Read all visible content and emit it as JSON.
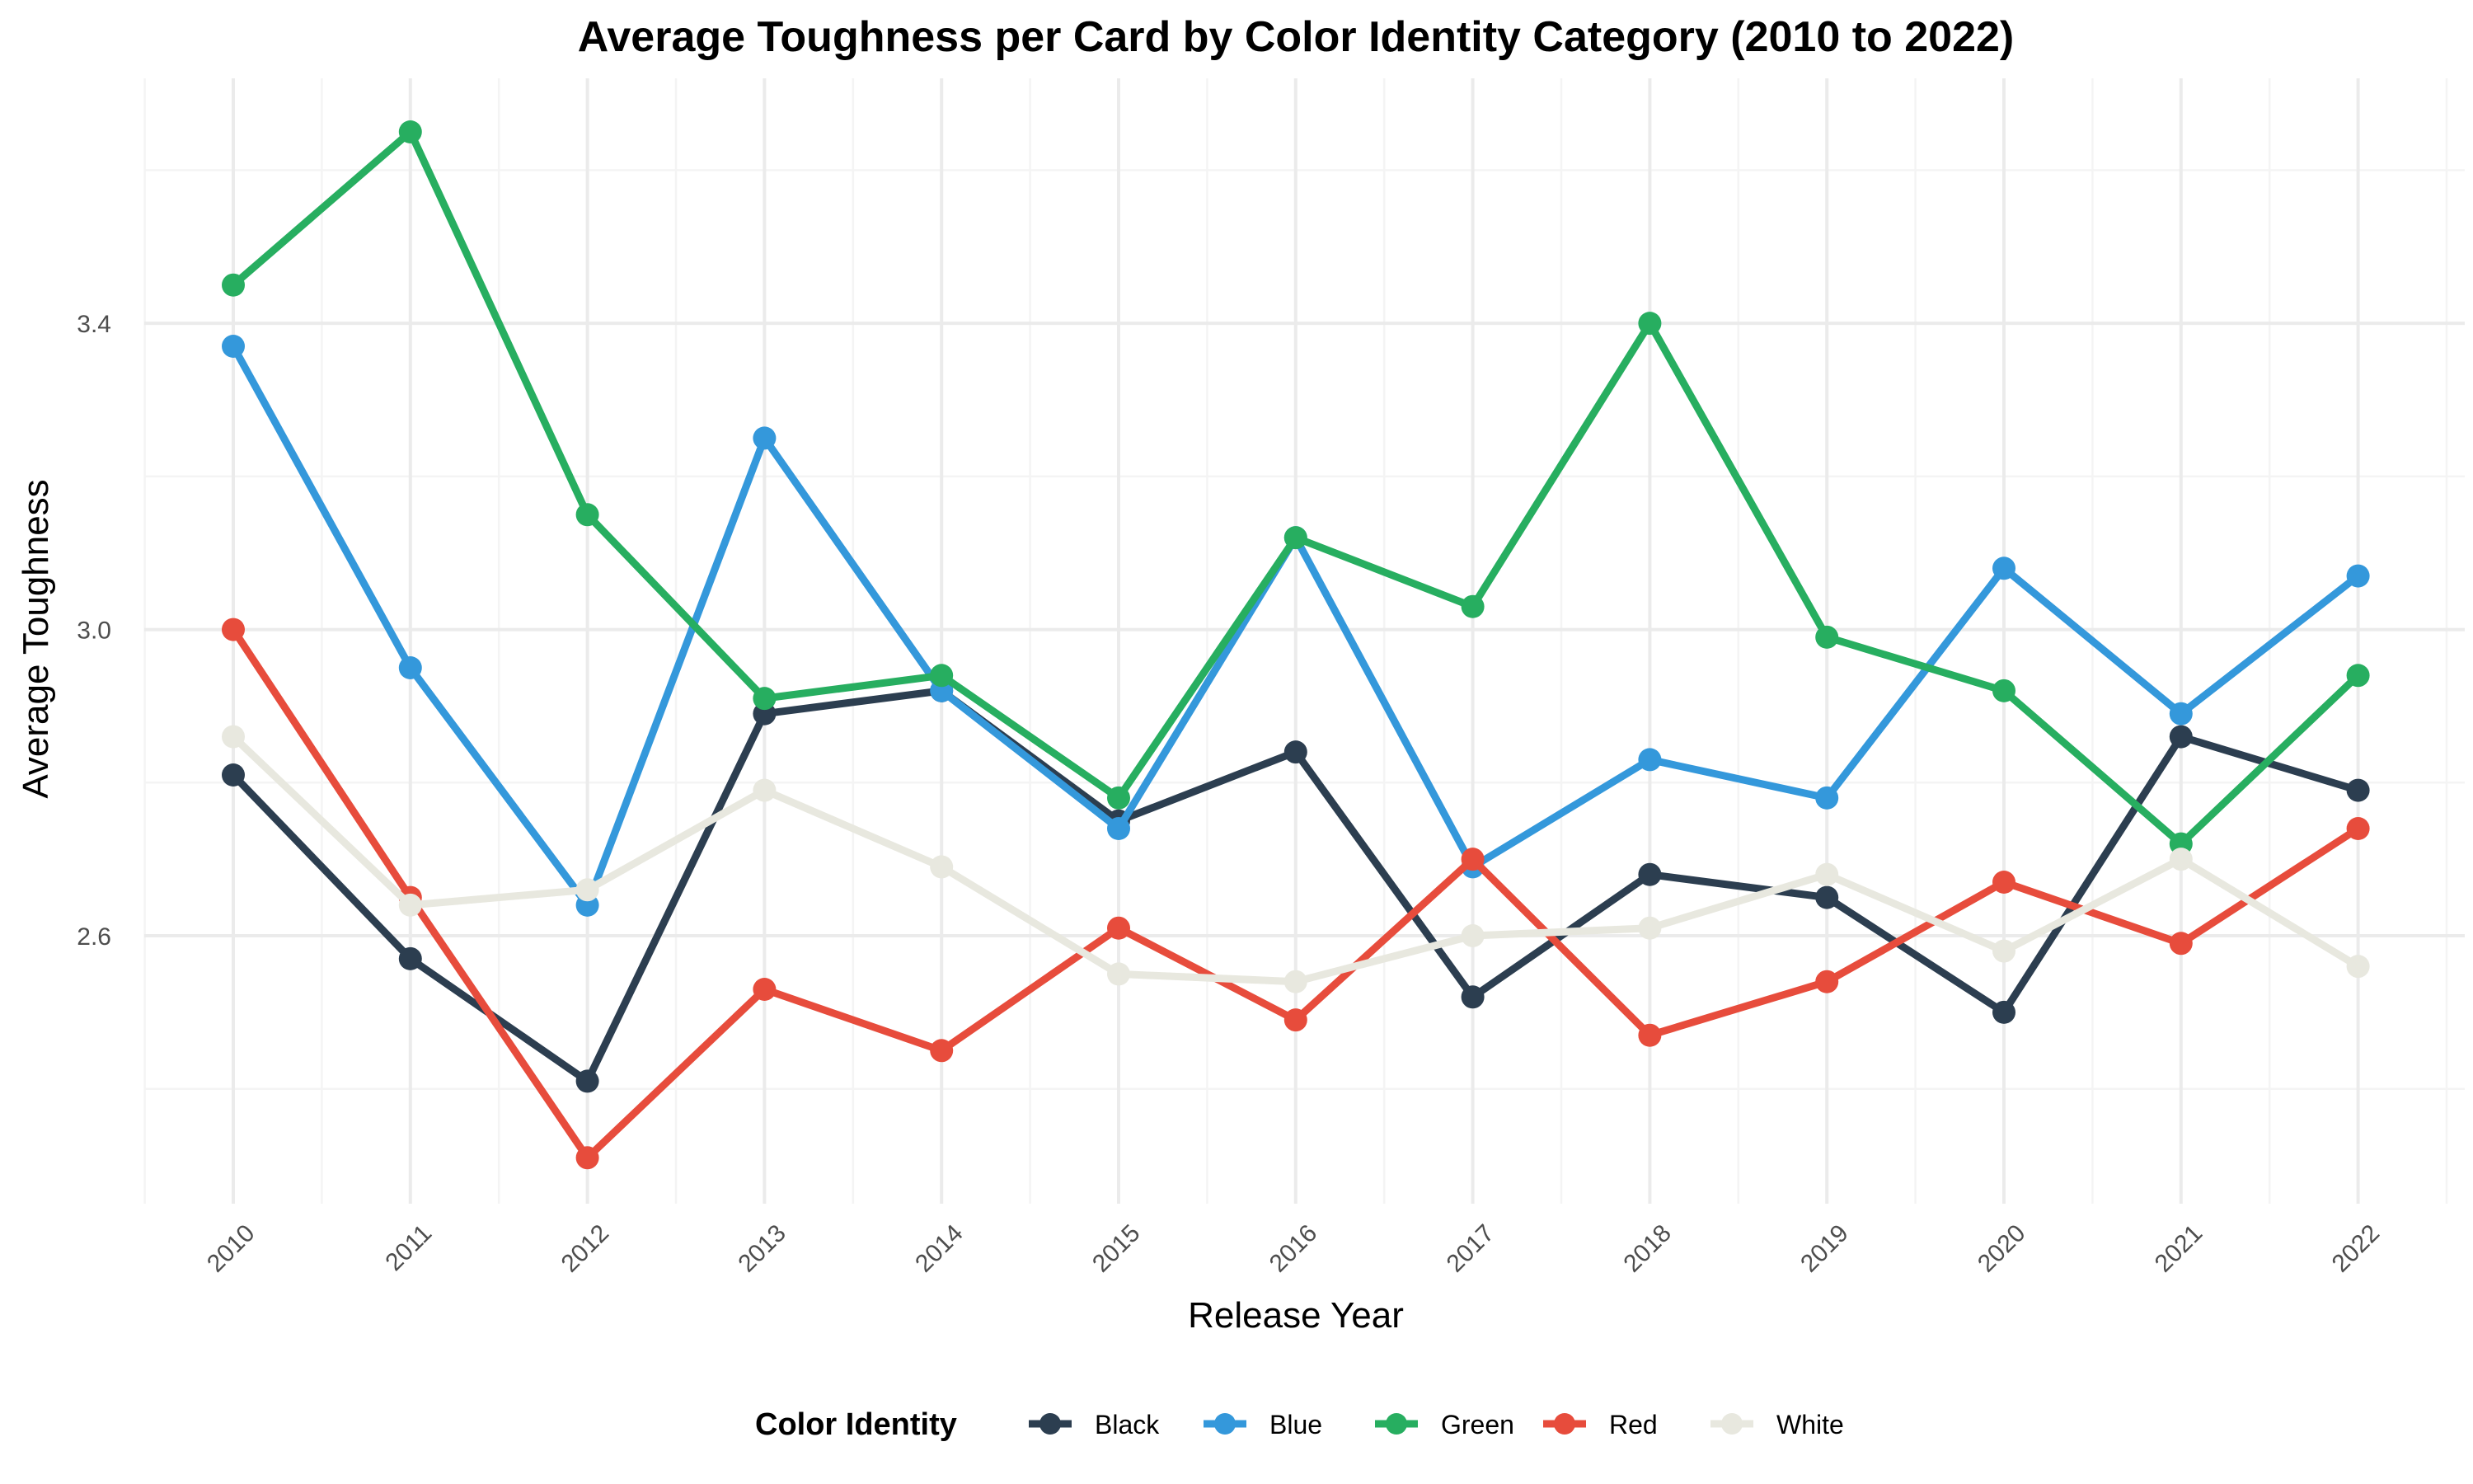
{
  "chart_data": {
    "type": "line",
    "title": "Average Toughness per Card by Color Identity Category (2010 to 2022)",
    "xlabel": "Release Year",
    "ylabel": "Average Toughness",
    "x": [
      "2010",
      "2011",
      "2012",
      "2013",
      "2014",
      "2015",
      "2016",
      "2017",
      "2018",
      "2019",
      "2020",
      "2021",
      "2022"
    ],
    "y_ticks": [
      2.6,
      3.0,
      3.4
    ],
    "y_tick_labels": [
      "2.6",
      "3.0",
      "3.4"
    ],
    "ylim": [
      2.25,
      3.72
    ],
    "grid": true,
    "legend": {
      "title": "Color Identity",
      "placement": "bottom"
    },
    "series": [
      {
        "name": "Black",
        "color": "#2c3e50",
        "values": [
          2.81,
          2.57,
          2.41,
          2.89,
          2.92,
          2.75,
          2.84,
          2.52,
          2.68,
          2.65,
          2.5,
          2.86,
          2.79
        ]
      },
      {
        "name": "Blue",
        "color": "#3498db",
        "values": [
          3.37,
          2.95,
          2.64,
          3.25,
          2.92,
          2.74,
          3.12,
          2.69,
          2.83,
          2.78,
          3.08,
          2.89,
          3.07
        ]
      },
      {
        "name": "Green",
        "color": "#27ae60",
        "values": [
          3.45,
          3.65,
          3.15,
          2.91,
          2.94,
          2.78,
          3.12,
          3.03,
          3.4,
          2.99,
          2.92,
          2.72,
          2.94
        ]
      },
      {
        "name": "Red",
        "color": "#e74c3c",
        "values": [
          3.0,
          2.65,
          2.31,
          2.53,
          2.45,
          2.61,
          2.49,
          2.7,
          2.47,
          2.54,
          2.67,
          2.59,
          2.74
        ]
      },
      {
        "name": "White",
        "color": "#e8e8df",
        "values": [
          2.86,
          2.64,
          2.66,
          2.79,
          2.69,
          2.55,
          2.54,
          2.6,
          2.61,
          2.68,
          2.58,
          2.7,
          2.56
        ]
      }
    ]
  }
}
